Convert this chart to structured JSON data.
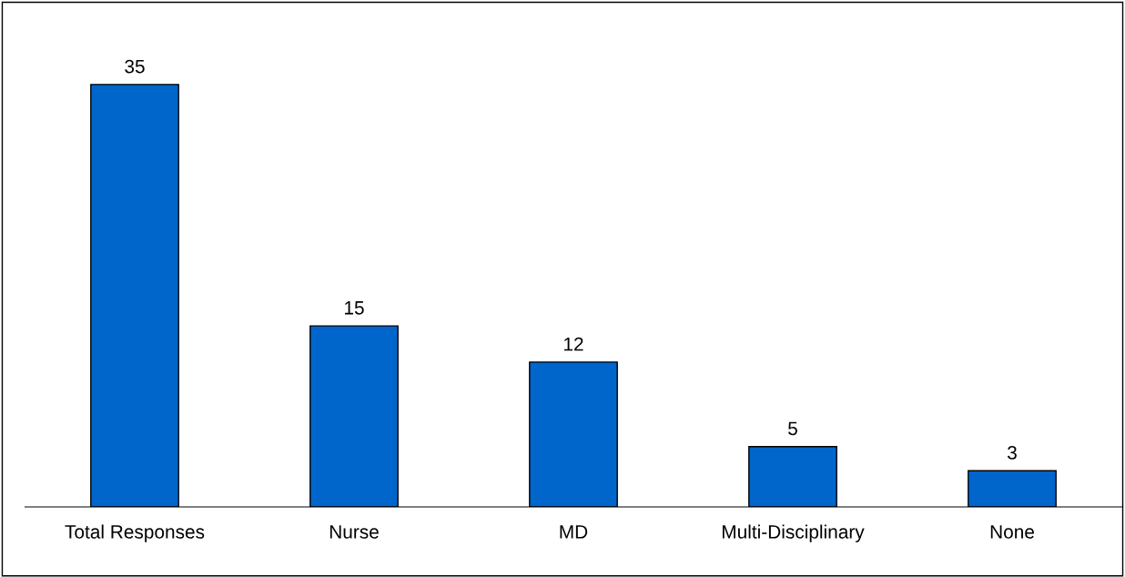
{
  "chart_data": {
    "type": "bar",
    "categories": [
      "Total Responses",
      "Nurse",
      "MD",
      "Multi-Disciplinary",
      "None"
    ],
    "values": [
      35,
      15,
      12,
      5,
      3
    ],
    "color": "#0066cc",
    "data_labels": true,
    "grid": false,
    "legend": false,
    "tick_labels": "x"
  }
}
